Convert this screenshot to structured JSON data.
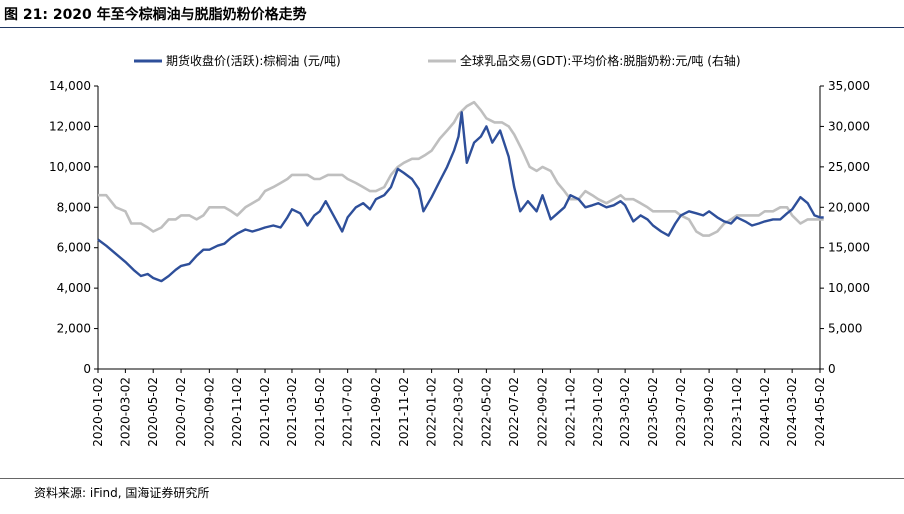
{
  "title": "图 21:  2020 年至今棕榈油与脱脂奶粉价格走势",
  "source": "资料来源: iFind, 国海证券研究所",
  "chart_data": {
    "type": "line",
    "x_tick_labels": [
      "2020-01-02",
      "2020-03-02",
      "2020-05-02",
      "2020-07-02",
      "2020-09-02",
      "2020-11-02",
      "2021-01-02",
      "2021-03-02",
      "2021-05-02",
      "2021-07-02",
      "2021-09-02",
      "2021-11-02",
      "2022-01-02",
      "2022-03-02",
      "2022-05-02",
      "2022-07-02",
      "2022-09-02",
      "2022-11-02",
      "2023-01-02",
      "2023-03-02",
      "2023-05-02",
      "2023-07-02",
      "2023-09-02",
      "2023-11-02",
      "2024-01-02",
      "2024-03-02",
      "2024-05-02"
    ],
    "y_left": {
      "min": 0,
      "max": 14000,
      "ticks": [
        "0",
        "2,000",
        "4,000",
        "6,000",
        "8,000",
        "10,000",
        "12,000",
        "14,000"
      ]
    },
    "y_right": {
      "min": 0,
      "max": 35000,
      "ticks": [
        "0",
        "5,000",
        "10,000",
        "15,000",
        "20,000",
        "25,000",
        "30,000",
        "35,000"
      ]
    },
    "legend_position": "top",
    "grid": false,
    "series": [
      {
        "name": "期货收盘价(活跃):棕榈油 (元/吨)",
        "axis": "left",
        "color": "#2e4f9a",
        "points": [
          [
            "2020-01-02",
            6400
          ],
          [
            "2020-01-20",
            6100
          ],
          [
            "2020-02-10",
            5700
          ],
          [
            "2020-03-02",
            5300
          ],
          [
            "2020-03-20",
            4900
          ],
          [
            "2020-04-05",
            4600
          ],
          [
            "2020-04-20",
            4700
          ],
          [
            "2020-05-02",
            4500
          ],
          [
            "2020-05-20",
            4350
          ],
          [
            "2020-06-05",
            4600
          ],
          [
            "2020-06-20",
            4900
          ],
          [
            "2020-07-02",
            5100
          ],
          [
            "2020-07-20",
            5200
          ],
          [
            "2020-08-05",
            5600
          ],
          [
            "2020-08-20",
            5900
          ],
          [
            "2020-09-02",
            5900
          ],
          [
            "2020-09-20",
            6100
          ],
          [
            "2020-10-05",
            6200
          ],
          [
            "2020-10-20",
            6500
          ],
          [
            "2020-11-02",
            6700
          ],
          [
            "2020-11-20",
            6900
          ],
          [
            "2020-12-05",
            6800
          ],
          [
            "2020-12-20",
            6900
          ],
          [
            "2021-01-02",
            7000
          ],
          [
            "2021-01-20",
            7100
          ],
          [
            "2021-02-05",
            7000
          ],
          [
            "2021-02-20",
            7500
          ],
          [
            "2021-03-02",
            7900
          ],
          [
            "2021-03-20",
            7700
          ],
          [
            "2021-04-05",
            7100
          ],
          [
            "2021-04-20",
            7600
          ],
          [
            "2021-05-02",
            7800
          ],
          [
            "2021-05-15",
            8300
          ],
          [
            "2021-06-01",
            7600
          ],
          [
            "2021-06-20",
            6800
          ],
          [
            "2021-07-02",
            7500
          ],
          [
            "2021-07-20",
            8000
          ],
          [
            "2021-08-05",
            8200
          ],
          [
            "2021-08-20",
            7900
          ],
          [
            "2021-09-02",
            8400
          ],
          [
            "2021-09-20",
            8600
          ],
          [
            "2021-10-05",
            9000
          ],
          [
            "2021-10-20",
            9900
          ],
          [
            "2021-11-02",
            9700
          ],
          [
            "2021-11-20",
            9400
          ],
          [
            "2021-12-05",
            8900
          ],
          [
            "2021-12-15",
            7800
          ],
          [
            "2022-01-02",
            8500
          ],
          [
            "2022-01-20",
            9300
          ],
          [
            "2022-02-05",
            10000
          ],
          [
            "2022-02-20",
            10800
          ],
          [
            "2022-03-02",
            11500
          ],
          [
            "2022-03-09",
            12700
          ],
          [
            "2022-03-20",
            10200
          ],
          [
            "2022-04-05",
            11200
          ],
          [
            "2022-04-20",
            11500
          ],
          [
            "2022-05-02",
            12000
          ],
          [
            "2022-05-15",
            11200
          ],
          [
            "2022-06-01",
            11800
          ],
          [
            "2022-06-20",
            10500
          ],
          [
            "2022-07-02",
            9000
          ],
          [
            "2022-07-15",
            7800
          ],
          [
            "2022-08-01",
            8300
          ],
          [
            "2022-08-20",
            7800
          ],
          [
            "2022-09-02",
            8600
          ],
          [
            "2022-09-20",
            7400
          ],
          [
            "2022-10-05",
            7700
          ],
          [
            "2022-10-20",
            8000
          ],
          [
            "2022-11-02",
            8600
          ],
          [
            "2022-11-20",
            8400
          ],
          [
            "2022-12-05",
            8000
          ],
          [
            "2022-12-20",
            8100
          ],
          [
            "2023-01-02",
            8200
          ],
          [
            "2023-01-20",
            8000
          ],
          [
            "2023-02-05",
            8100
          ],
          [
            "2023-02-20",
            8300
          ],
          [
            "2023-03-02",
            8100
          ],
          [
            "2023-03-20",
            7300
          ],
          [
            "2023-04-05",
            7600
          ],
          [
            "2023-04-20",
            7400
          ],
          [
            "2023-05-02",
            7100
          ],
          [
            "2023-05-20",
            6800
          ],
          [
            "2023-06-05",
            6600
          ],
          [
            "2023-06-20",
            7200
          ],
          [
            "2023-07-02",
            7600
          ],
          [
            "2023-07-20",
            7800
          ],
          [
            "2023-08-05",
            7700
          ],
          [
            "2023-08-20",
            7600
          ],
          [
            "2023-09-02",
            7800
          ],
          [
            "2023-09-20",
            7500
          ],
          [
            "2023-10-05",
            7300
          ],
          [
            "2023-10-20",
            7200
          ],
          [
            "2023-11-02",
            7500
          ],
          [
            "2023-11-20",
            7300
          ],
          [
            "2023-12-05",
            7100
          ],
          [
            "2023-12-20",
            7200
          ],
          [
            "2024-01-02",
            7300
          ],
          [
            "2024-01-20",
            7400
          ],
          [
            "2024-02-05",
            7400
          ],
          [
            "2024-02-20",
            7700
          ],
          [
            "2024-03-02",
            7900
          ],
          [
            "2024-03-20",
            8500
          ],
          [
            "2024-04-05",
            8200
          ],
          [
            "2024-04-20",
            7600
          ],
          [
            "2024-05-02",
            7500
          ],
          [
            "2024-05-10",
            7500
          ]
        ]
      },
      {
        "name": "全球乳品交易(GDT):平均价格:脱脂奶粉:元/吨 (右轴)",
        "axis": "right",
        "color": "#bfbfbf",
        "points": [
          [
            "2020-01-02",
            21500
          ],
          [
            "2020-01-20",
            21500
          ],
          [
            "2020-02-10",
            20000
          ],
          [
            "2020-03-02",
            19500
          ],
          [
            "2020-03-15",
            18000
          ],
          [
            "2020-04-05",
            18000
          ],
          [
            "2020-04-20",
            17500
          ],
          [
            "2020-05-02",
            17000
          ],
          [
            "2020-05-20",
            17500
          ],
          [
            "2020-06-05",
            18500
          ],
          [
            "2020-06-20",
            18500
          ],
          [
            "2020-07-02",
            19000
          ],
          [
            "2020-07-20",
            19000
          ],
          [
            "2020-08-05",
            18500
          ],
          [
            "2020-08-20",
            19000
          ],
          [
            "2020-09-02",
            20000
          ],
          [
            "2020-09-20",
            20000
          ],
          [
            "2020-10-05",
            20000
          ],
          [
            "2020-10-20",
            19500
          ],
          [
            "2020-11-02",
            19000
          ],
          [
            "2020-11-20",
            20000
          ],
          [
            "2020-12-05",
            20500
          ],
          [
            "2020-12-20",
            21000
          ],
          [
            "2021-01-02",
            22000
          ],
          [
            "2021-01-20",
            22500
          ],
          [
            "2021-02-05",
            23000
          ],
          [
            "2021-02-20",
            23500
          ],
          [
            "2021-03-02",
            24000
          ],
          [
            "2021-03-20",
            24000
          ],
          [
            "2021-04-05",
            24000
          ],
          [
            "2021-04-20",
            23500
          ],
          [
            "2021-05-02",
            23500
          ],
          [
            "2021-05-20",
            24000
          ],
          [
            "2021-06-05",
            24000
          ],
          [
            "2021-06-20",
            24000
          ],
          [
            "2021-07-02",
            23500
          ],
          [
            "2021-07-20",
            23000
          ],
          [
            "2021-08-05",
            22500
          ],
          [
            "2021-08-20",
            22000
          ],
          [
            "2021-09-02",
            22000
          ],
          [
            "2021-09-20",
            22500
          ],
          [
            "2021-10-05",
            24000
          ],
          [
            "2021-10-20",
            25000
          ],
          [
            "2021-11-02",
            25500
          ],
          [
            "2021-11-20",
            26000
          ],
          [
            "2021-12-05",
            26000
          ],
          [
            "2021-12-20",
            26500
          ],
          [
            "2022-01-02",
            27000
          ],
          [
            "2022-01-20",
            28500
          ],
          [
            "2022-02-05",
            29500
          ],
          [
            "2022-02-20",
            30500
          ],
          [
            "2022-03-02",
            31500
          ],
          [
            "2022-03-20",
            32500
          ],
          [
            "2022-04-05",
            33000
          ],
          [
            "2022-04-20",
            32000
          ],
          [
            "2022-05-02",
            31000
          ],
          [
            "2022-05-20",
            30500
          ],
          [
            "2022-06-05",
            30500
          ],
          [
            "2022-06-20",
            30000
          ],
          [
            "2022-07-02",
            29000
          ],
          [
            "2022-07-20",
            27000
          ],
          [
            "2022-08-05",
            25000
          ],
          [
            "2022-08-20",
            24500
          ],
          [
            "2022-09-02",
            25000
          ],
          [
            "2022-09-20",
            24500
          ],
          [
            "2022-10-05",
            23000
          ],
          [
            "2022-10-20",
            22000
          ],
          [
            "2022-11-02",
            21000
          ],
          [
            "2022-11-20",
            21000
          ],
          [
            "2022-12-05",
            22000
          ],
          [
            "2022-12-20",
            21500
          ],
          [
            "2023-01-02",
            21000
          ],
          [
            "2023-01-20",
            20500
          ],
          [
            "2023-02-05",
            21000
          ],
          [
            "2023-02-20",
            21500
          ],
          [
            "2023-03-02",
            21000
          ],
          [
            "2023-03-20",
            21000
          ],
          [
            "2023-04-05",
            20500
          ],
          [
            "2023-04-20",
            20000
          ],
          [
            "2023-05-02",
            19500
          ],
          [
            "2023-05-20",
            19500
          ],
          [
            "2023-06-05",
            19500
          ],
          [
            "2023-06-20",
            19500
          ],
          [
            "2023-07-02",
            19000
          ],
          [
            "2023-07-20",
            18500
          ],
          [
            "2023-08-05",
            17000
          ],
          [
            "2023-08-20",
            16500
          ],
          [
            "2023-09-02",
            16500
          ],
          [
            "2023-09-20",
            17000
          ],
          [
            "2023-10-05",
            18000
          ],
          [
            "2023-10-20",
            18500
          ],
          [
            "2023-11-02",
            19000
          ],
          [
            "2023-11-20",
            19000
          ],
          [
            "2023-12-05",
            19000
          ],
          [
            "2023-12-20",
            19000
          ],
          [
            "2024-01-02",
            19500
          ],
          [
            "2024-01-20",
            19500
          ],
          [
            "2024-02-05",
            20000
          ],
          [
            "2024-02-20",
            20000
          ],
          [
            "2024-03-02",
            19000
          ],
          [
            "2024-03-20",
            18000
          ],
          [
            "2024-04-05",
            18500
          ],
          [
            "2024-04-20",
            18500
          ],
          [
            "2024-05-02",
            18500
          ],
          [
            "2024-05-10",
            18500
          ]
        ]
      }
    ]
  }
}
